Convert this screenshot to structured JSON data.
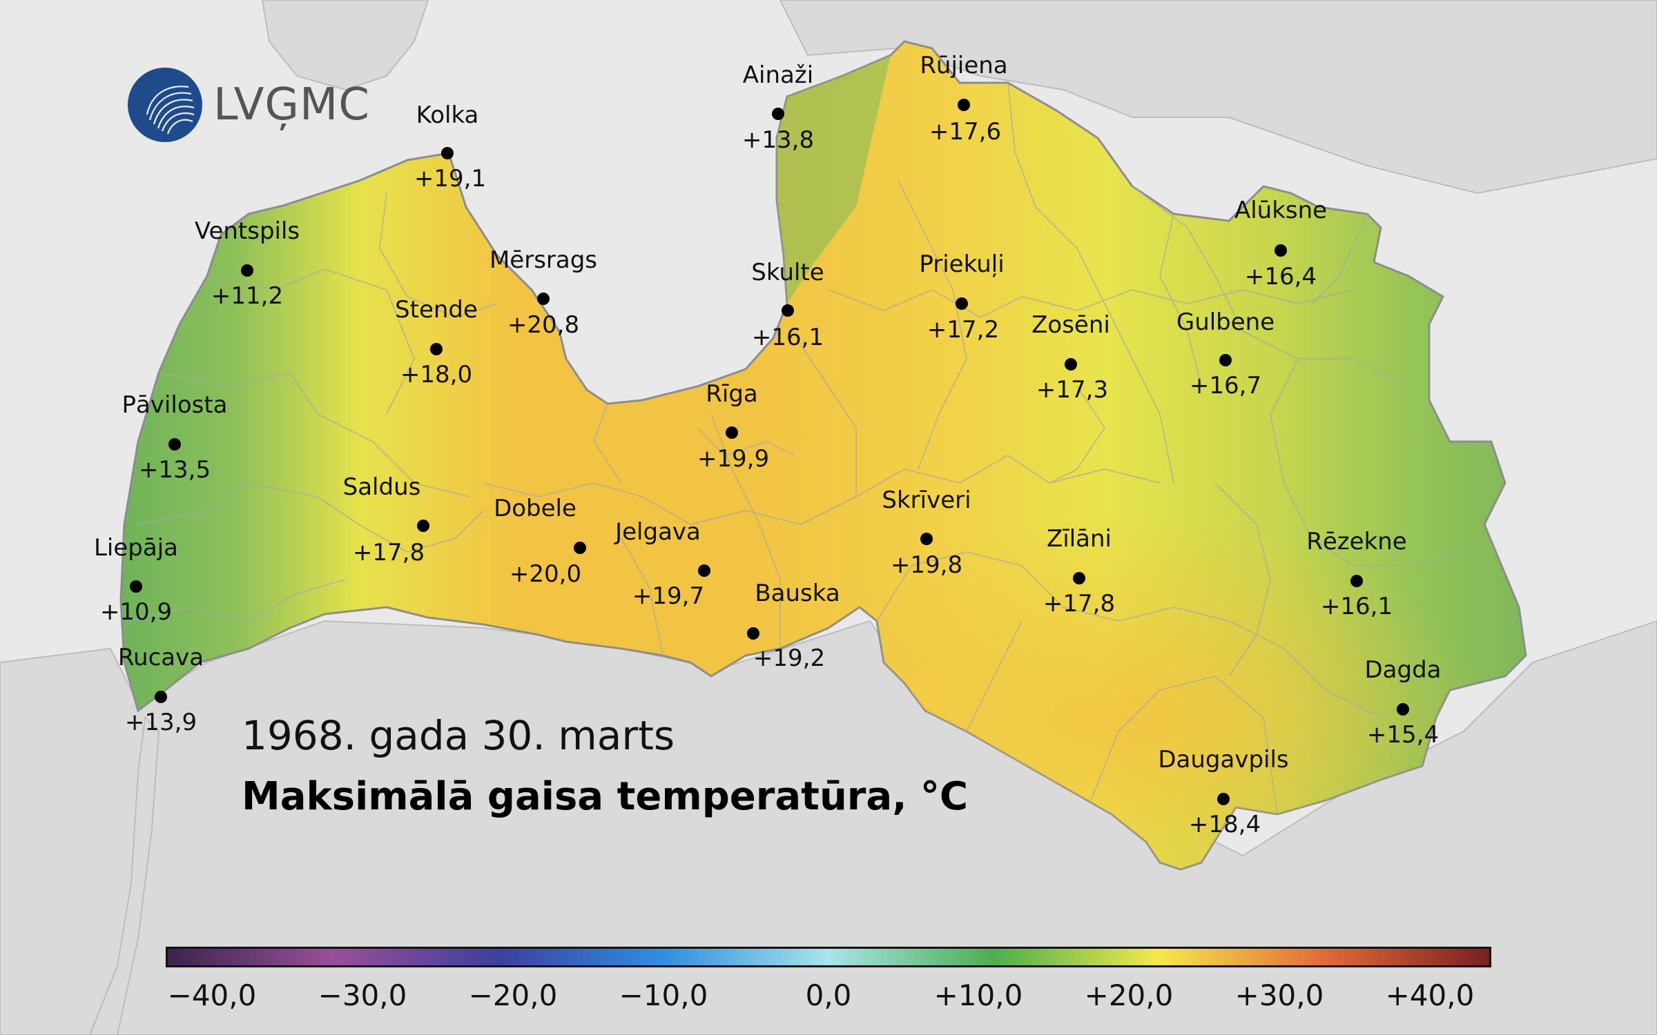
{
  "logo": {
    "text": "LVĢMC",
    "icon": "wave-globe-icon"
  },
  "title": {
    "date": "1968. gada 30. marts",
    "main": "Maksimālā gaisa temperatūra, °C"
  },
  "stations": [
    {
      "name": "Kolka",
      "value": "+19,1"
    },
    {
      "name": "Ainaži",
      "value": "+13,8"
    },
    {
      "name": "Rūjiena",
      "value": "+17,6"
    },
    {
      "name": "Ventspils",
      "value": "+11,2"
    },
    {
      "name": "Mērsrags",
      "value": "+20,8"
    },
    {
      "name": "Skulte",
      "value": "+16,1"
    },
    {
      "name": "Priekuļi",
      "value": "+17,2"
    },
    {
      "name": "Alūksne",
      "value": "+16,4"
    },
    {
      "name": "Stende",
      "value": "+18,0"
    },
    {
      "name": "Zosēni",
      "value": "+17,3"
    },
    {
      "name": "Gulbene",
      "value": "+16,7"
    },
    {
      "name": "Pāvilosta",
      "value": "+13,5"
    },
    {
      "name": "Rīga",
      "value": "+19,9"
    },
    {
      "name": "Saldus",
      "value": "+17,8"
    },
    {
      "name": "Dobele",
      "value": "+20,0"
    },
    {
      "name": "Skrīveri",
      "value": "+19,8"
    },
    {
      "name": "Jelgava",
      "value": "+19,7"
    },
    {
      "name": "Zīlāni",
      "value": "+17,8"
    },
    {
      "name": "Rēzekne",
      "value": "+16,1"
    },
    {
      "name": "Liepāja",
      "value": "+10,9"
    },
    {
      "name": "Bauska",
      "value": "+19,2"
    },
    {
      "name": "Rucava",
      "value": "+13,9"
    },
    {
      "name": "Dagda",
      "value": "+15,4"
    },
    {
      "name": "Daugavpils",
      "value": "+18,4"
    }
  ],
  "scale": {
    "labels": [
      "−40,0",
      "−30,0",
      "−20,0",
      "−10,0",
      "0,0",
      "+10,0",
      "+20,0",
      "+30,0",
      "+40,0"
    ],
    "colors": [
      "#3b2350",
      "#9a4f98",
      "#3d3f9e",
      "#2f8fe0",
      "#a8e4ea",
      "#4caf50",
      "#f5e94a",
      "#e26a3a",
      "#7a2020"
    ]
  },
  "colors": {
    "sea": "#e8e8e8",
    "land": "#d8d8d8",
    "warm": "#f2b43a",
    "mild": "#f0e84c",
    "cool": "#8cc25a"
  }
}
